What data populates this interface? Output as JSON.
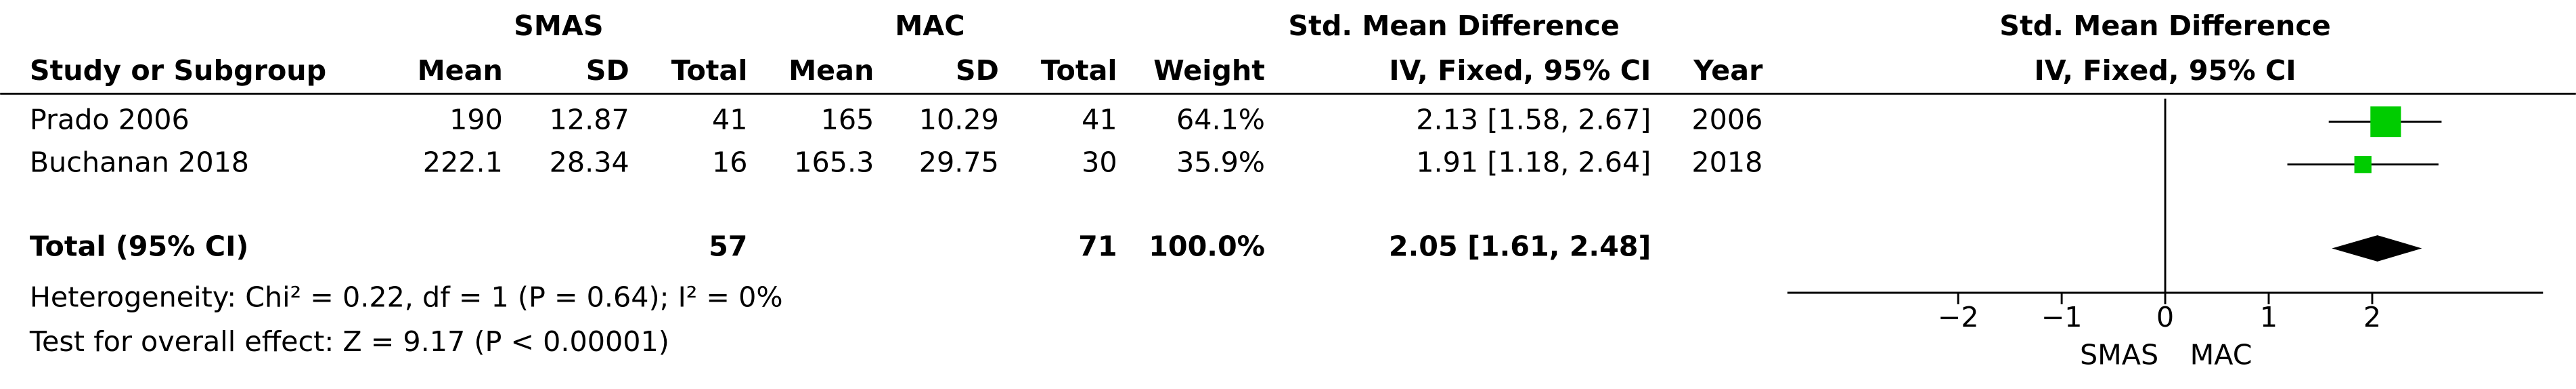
{
  "chart_data": {
    "type": "forest",
    "groups": [
      "SMAS",
      "MAC",
      "Std. Mean Difference"
    ],
    "plot_title": "Std. Mean Difference",
    "headers": [
      "Study or Subgroup",
      "Mean",
      "SD",
      "Total",
      "Mean",
      "SD",
      "Total",
      "Weight",
      "IV, Fixed, 95% CI",
      "Year"
    ],
    "plot_header": "IV, Fixed, 95% CI",
    "studies": [
      {
        "name": "Prado 2006",
        "smas_mean": 190,
        "smas_sd": 12.87,
        "smas_total": 41,
        "mac_mean": 165,
        "mac_sd": 10.29,
        "mac_total": 41,
        "weight": {
          "value": 64.1,
          "label": "64.1%"
        },
        "smd": 2.13,
        "ci_low": 1.58,
        "ci_high": 2.67,
        "effect_label": "2.13 [1.58, 2.67]",
        "year": 2006
      },
      {
        "name": "Buchanan 2018",
        "smas_mean": 222.1,
        "smas_sd": 28.34,
        "smas_total": 16,
        "mac_mean": 165.3,
        "mac_sd": 29.75,
        "mac_total": 30,
        "weight": {
          "value": 35.9,
          "label": "35.9%"
        },
        "smd": 1.91,
        "ci_low": 1.18,
        "ci_high": 2.64,
        "effect_label": "1.91 [1.18, 2.64]",
        "year": 2018
      }
    ],
    "total": {
      "name": "Total (95% CI)",
      "smas_total": 57,
      "mac_total": 71,
      "weight": {
        "value": 100,
        "label": "100.0%"
      },
      "smd": 2.05,
      "ci_low": 1.61,
      "ci_high": 2.48,
      "effect_label": "2.05 [1.61, 2.48]"
    },
    "heterogeneity": "Heterogeneity: Chi² = 0.22, df = 1 (P = 0.64); I² = 0%",
    "overall_effect": "Test for overall effect: Z = 9.17 (P < 0.00001)",
    "favours": [
      "SMAS",
      "MAC"
    ],
    "xlim": [
      -3.65,
      3.65
    ],
    "xticks": [
      {
        "value": -2,
        "label": "−2"
      },
      {
        "value": -1,
        "label": "−1"
      },
      0,
      1,
      2
    ],
    "color": "#00cc00",
    "diamond_color": "#000000"
  }
}
